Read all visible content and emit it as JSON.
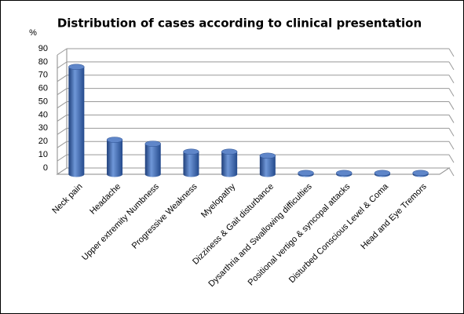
{
  "chart_data": {
    "type": "bar",
    "title": "Distribution of cases according to clinical presentation",
    "y_label": "%",
    "categories": [
      "Neck pain",
      "Headache",
      "Upper extremity Numbness",
      "Progressive Weakness",
      "Myelopathy",
      "Dizziness & Gait disturbance",
      "Dysarthria and Swallowing difficulties",
      "Positional vertigo & syncopal attacks",
      "Disturbed Conscious Level & Coma",
      "Head and Eye Tremors"
    ],
    "values": [
      81,
      26,
      23,
      17,
      17,
      14,
      1,
      1,
      1,
      1
    ],
    "color": "#3a66b0",
    "ylim": [
      0,
      90
    ],
    "yticks": [
      0,
      10,
      20,
      30,
      40,
      50,
      60,
      70,
      80,
      90
    ],
    "grid": true
  }
}
